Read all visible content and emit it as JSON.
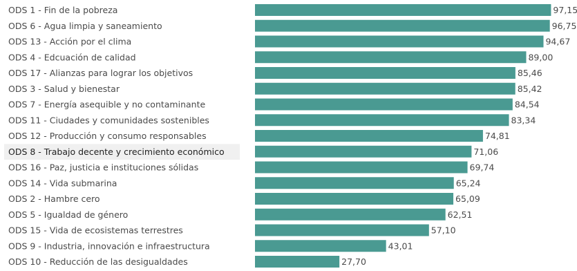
{
  "chart_data": {
    "type": "bar",
    "orientation": "horizontal",
    "title": "",
    "xlabel": "",
    "ylabel": "",
    "grid": false,
    "legend": "none",
    "bar_color": "#4a9a92",
    "highlight_row_color": "#f0f0f0",
    "xlim": [
      0,
      100
    ],
    "highlighted_category": "ODS 8 - Trabajo decente y crecimiento económico",
    "categories": [
      "ODS 1 - Fin de la pobreza",
      "ODS 6 - Agua limpia y saneamiento",
      "ODS 13 - Acción por el clima",
      "ODS 4 - Edcuación de calidad",
      "ODS 17 - Alianzas para lograr los objetivos",
      "ODS 3 - Salud y bienestar",
      "ODS 7 - Energía asequible y no contaminante",
      "ODS 11 - Ciudades y comunidades sostenibles",
      "ODS 12 - Producción y consumo responsables",
      "ODS 8 - Trabajo decente y crecimiento económico",
      "ODS 16 - Paz, justicia e instituciones sólidas",
      "ODS 14 - Vida submarina",
      "ODS 2 - Hambre cero",
      "ODS 5 - Igualdad de género",
      "ODS 15 - Vida de ecosistemas terrestres",
      "ODS 9 - Industria, innovación e infraestructura",
      "ODS 10 - Reducción de las desigualdades"
    ],
    "values": [
      97.15,
      96.75,
      94.67,
      89.0,
      85.46,
      85.42,
      84.54,
      83.34,
      74.81,
      71.06,
      69.74,
      65.24,
      65.09,
      62.51,
      57.1,
      43.01,
      27.7
    ],
    "value_labels": [
      "97,15",
      "96,75",
      "94,67",
      "89,00",
      "85,46",
      "85,42",
      "84,54",
      "83,34",
      "74,81",
      "71,06",
      "69,74",
      "65,24",
      "65,09",
      "62,51",
      "57,10",
      "43,01",
      "27,70"
    ]
  }
}
